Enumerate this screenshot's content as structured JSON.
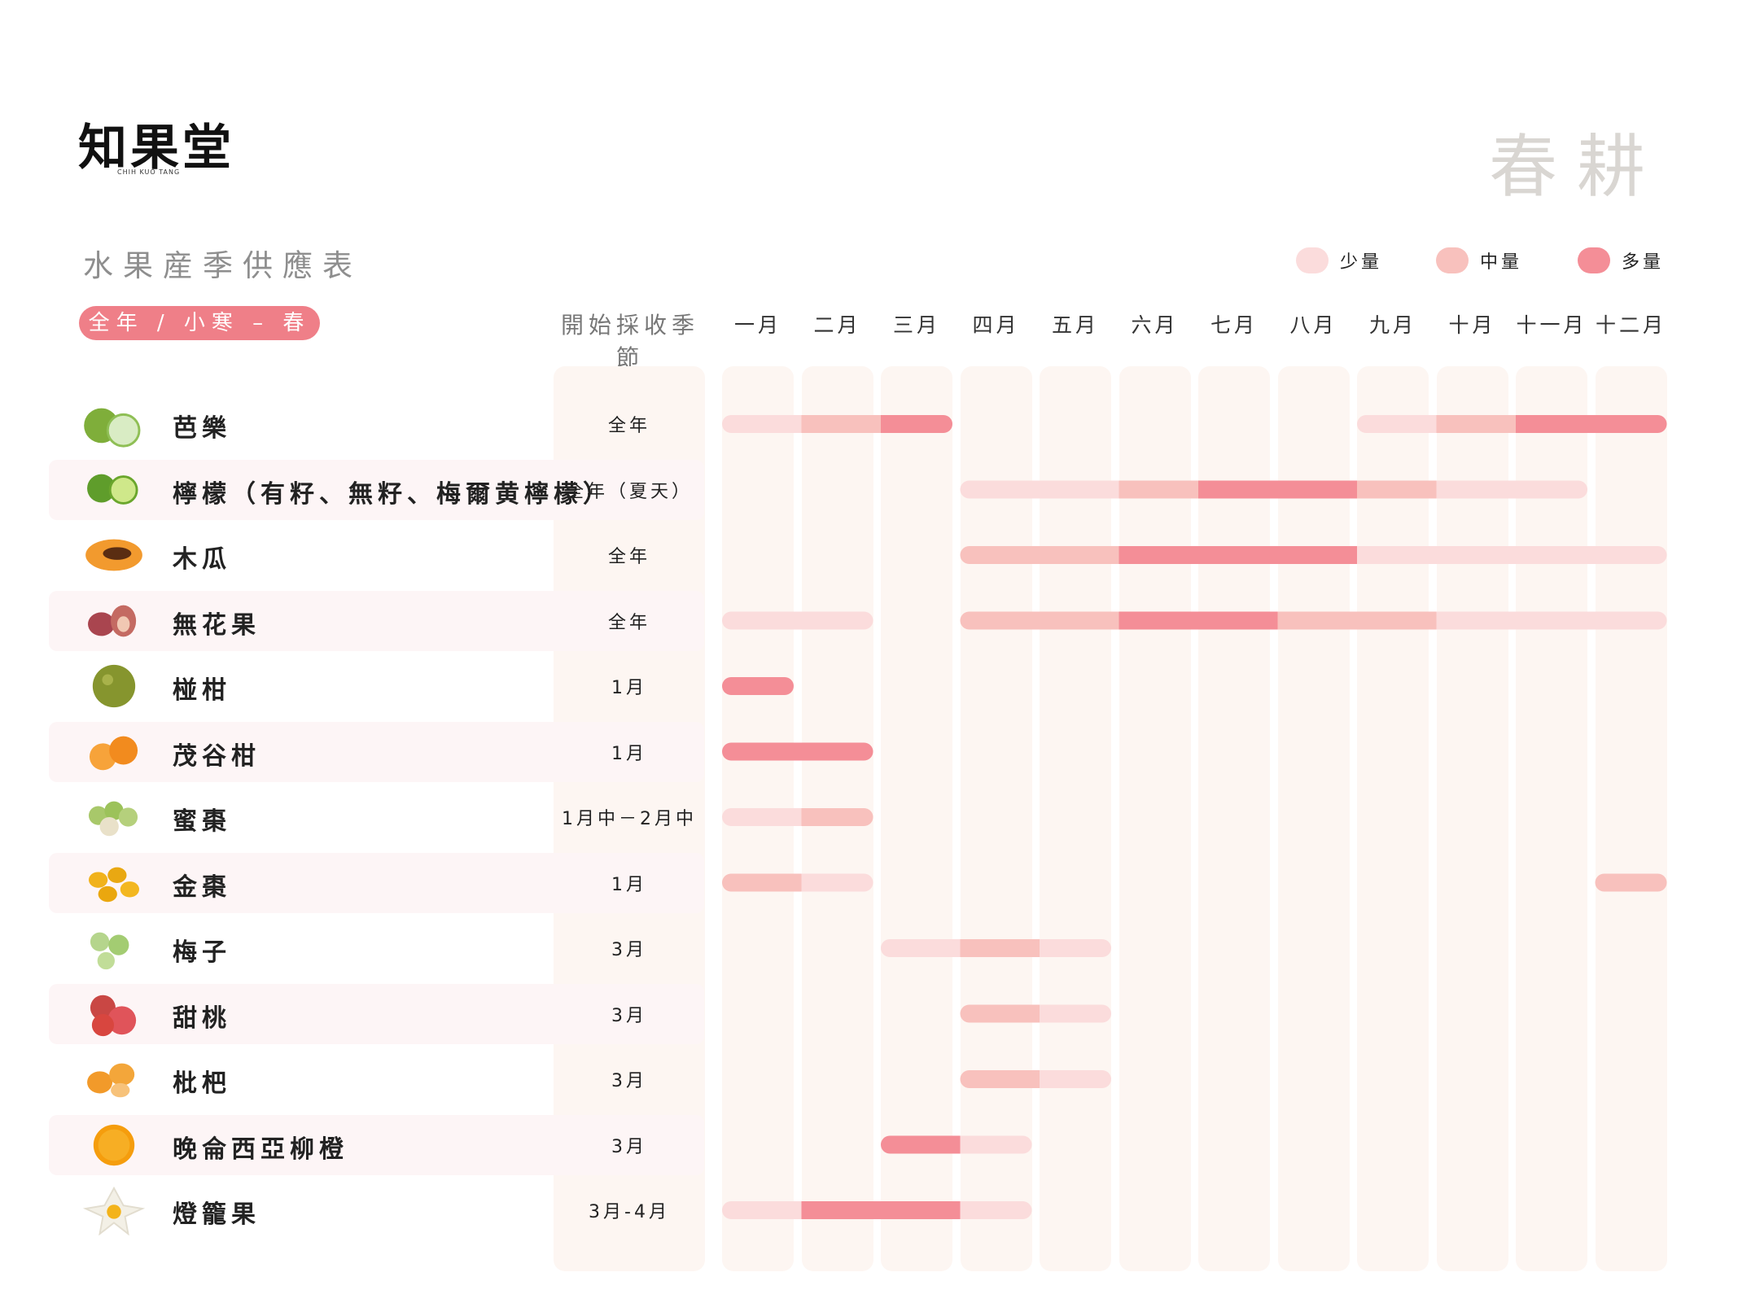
{
  "logo": {
    "name": "知果堂",
    "subtitle": "CHIH KUO TANG"
  },
  "season_title": "春耕",
  "subtitle": "水果産季供應表",
  "period_label": "全年 / 小寒 – 春分",
  "season_column_header": "開始採收季節",
  "colors": {
    "light": "#fbdcdc",
    "medium": "#f8c1bd",
    "heavy": "#f48e97",
    "column_bg": "#fdf6f2",
    "accent": "#ef7f88"
  },
  "chart_data": {
    "type": "table",
    "legend": [
      {
        "label": "少量",
        "level": "light"
      },
      {
        "label": "中量",
        "level": "medium"
      },
      {
        "label": "多量",
        "level": "heavy"
      }
    ],
    "months": [
      "一月",
      "二月",
      "三月",
      "四月",
      "五月",
      "六月",
      "七月",
      "八月",
      "九月",
      "十月",
      "十一月",
      "十二月"
    ],
    "fruits": [
      {
        "name": "芭樂",
        "icon": "guava-icon",
        "season": "全年",
        "levels": [
          "light",
          "medium",
          "heavy",
          null,
          null,
          null,
          null,
          null,
          "light",
          "medium",
          "heavy",
          "heavy"
        ]
      },
      {
        "name": "檸檬（有籽、無籽、梅爾黄檸檬）",
        "icon": "lime-icon",
        "season": "全年（夏天）",
        "levels": [
          null,
          null,
          null,
          "light",
          "light",
          "medium",
          "heavy",
          "heavy",
          "medium",
          "light",
          "light",
          null
        ]
      },
      {
        "name": "木瓜",
        "icon": "papaya-icon",
        "season": "全年",
        "levels": [
          null,
          null,
          null,
          "medium",
          "medium",
          "heavy",
          "heavy",
          "heavy",
          "light",
          "light",
          "light",
          "light"
        ]
      },
      {
        "name": "無花果",
        "icon": "fig-icon",
        "season": "全年",
        "levels": [
          "light",
          "light",
          null,
          "medium",
          "medium",
          "heavy",
          "heavy",
          "medium",
          "medium",
          "light",
          "light",
          "light"
        ]
      },
      {
        "name": "椪柑",
        "icon": "ponkan-icon",
        "season": "1月",
        "levels": [
          "heavy",
          null,
          null,
          null,
          null,
          null,
          null,
          null,
          null,
          null,
          null,
          null
        ]
      },
      {
        "name": "茂谷柑",
        "icon": "murcott-icon",
        "season": "1月",
        "levels": [
          "heavy",
          "heavy",
          null,
          null,
          null,
          null,
          null,
          null,
          null,
          null,
          null,
          null
        ]
      },
      {
        "name": "蜜棗",
        "icon": "jujube-icon",
        "season": "1月中－2月中",
        "levels": [
          "light",
          "medium",
          null,
          null,
          null,
          null,
          null,
          null,
          null,
          null,
          null,
          null
        ]
      },
      {
        "name": "金棗",
        "icon": "kumquat-icon",
        "season": "1月",
        "levels": [
          "medium",
          "light",
          null,
          null,
          null,
          null,
          null,
          null,
          null,
          null,
          null,
          "medium"
        ]
      },
      {
        "name": "梅子",
        "icon": "plum-icon",
        "season": "3月",
        "levels": [
          null,
          null,
          "light",
          "medium",
          "light",
          null,
          null,
          null,
          null,
          null,
          null,
          null
        ]
      },
      {
        "name": "甜桃",
        "icon": "nectarine-icon",
        "season": "3月",
        "levels": [
          null,
          null,
          null,
          "medium",
          "light",
          null,
          null,
          null,
          null,
          null,
          null,
          null
        ]
      },
      {
        "name": "枇杷",
        "icon": "loquat-icon",
        "season": "3月",
        "levels": [
          null,
          null,
          null,
          "medium",
          "light",
          null,
          null,
          null,
          null,
          null,
          null,
          null
        ]
      },
      {
        "name": "晚侖西亞柳橙",
        "icon": "orange-icon",
        "season": "3月",
        "levels": [
          null,
          null,
          "heavy",
          "light",
          null,
          null,
          null,
          null,
          null,
          null,
          null,
          null
        ]
      },
      {
        "name": "燈籠果",
        "icon": "physalis-icon",
        "season": "3月-4月",
        "levels": [
          "light",
          "heavy",
          "heavy",
          "light",
          null,
          null,
          null,
          null,
          null,
          null,
          null,
          null
        ]
      }
    ]
  }
}
